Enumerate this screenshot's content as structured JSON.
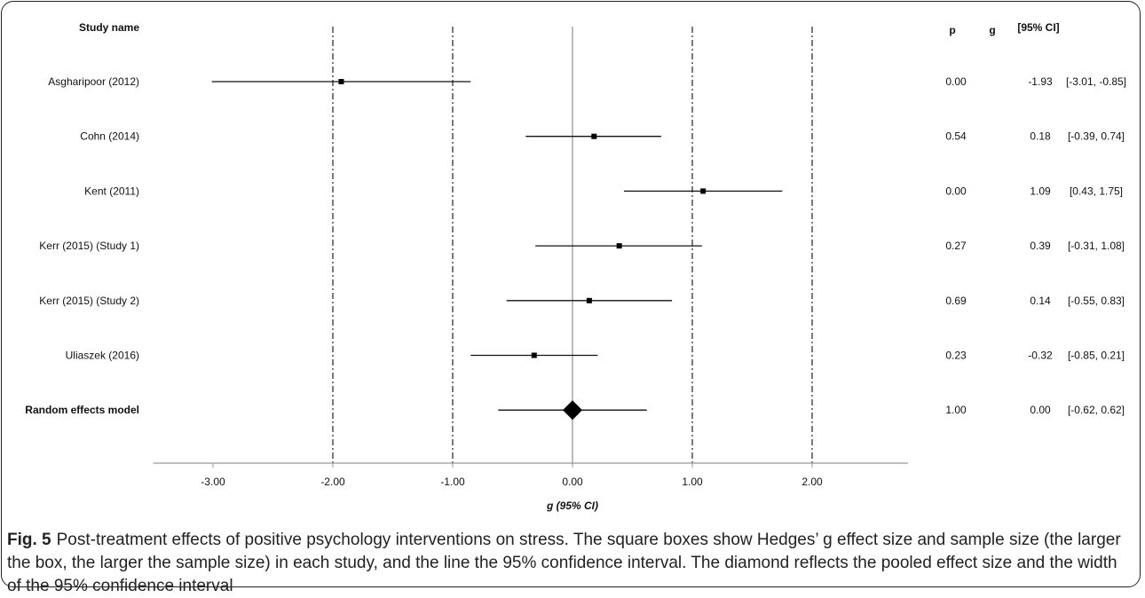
{
  "chart_data": {
    "type": "forest",
    "title": "",
    "xlabel": "g (95% CI)",
    "xlim": [
      -3.5,
      2.8
    ],
    "x_ticks": [
      -3.0,
      -2.0,
      -1.0,
      0.0,
      1.0,
      2.0
    ],
    "x_tick_labels": [
      "-3.00",
      "-2.00",
      "-1.00",
      "0.00",
      "1.00",
      "2.00"
    ],
    "reference_lines_dashdot": [
      -2.0,
      -1.0,
      1.0,
      2.0
    ],
    "reference_line_solid": 0.0,
    "headers": {
      "study": "Study name",
      "p": "p",
      "g": "g",
      "ci": "[95% CI]"
    },
    "studies": [
      {
        "name": "Asgharipoor (2012)",
        "g": -1.93,
        "lower": -3.01,
        "upper": -0.85,
        "p": "0.00",
        "g_label": "-1.93",
        "ci_label": "[-3.01, -0.85]"
      },
      {
        "name": "Cohn (2014)",
        "g": 0.18,
        "lower": -0.39,
        "upper": 0.74,
        "p": "0.54",
        "g_label": "0.18",
        "ci_label": "[-0.39, 0.74]"
      },
      {
        "name": "Kent (2011)",
        "g": 1.09,
        "lower": 0.43,
        "upper": 1.75,
        "p": "0.00",
        "g_label": "1.09",
        "ci_label": "[0.43, 1.75]"
      },
      {
        "name": "Kerr (2015) (Study 1)",
        "g": 0.39,
        "lower": -0.31,
        "upper": 1.08,
        "p": "0.27",
        "g_label": "0.39",
        "ci_label": "[-0.31, 1.08]"
      },
      {
        "name": "Kerr (2015) (Study 2)",
        "g": 0.14,
        "lower": -0.55,
        "upper": 0.83,
        "p": "0.69",
        "g_label": "0.14",
        "ci_label": "[-0.55, 0.83]"
      },
      {
        "name": "Uliaszek (2016)",
        "g": -0.32,
        "lower": -0.85,
        "upper": 0.21,
        "p": "0.23",
        "g_label": "-0.32",
        "ci_label": "[-0.85, 0.21]"
      }
    ],
    "pooled": {
      "name": "Random effects model",
      "g": 0.0,
      "lower": -0.62,
      "upper": 0.62,
      "p": "1.00",
      "g_label": "0.00",
      "ci_label": "[-0.62, 0.62]"
    }
  },
  "caption": {
    "label": "Fig. 5",
    "text": "Post-treatment effects of positive psychology interventions on stress. The square boxes show Hedges’ g effect size and sample size (the larger the box, the larger the sample size) in each study, and the line the 95% confidence interval. The diamond reflects the pooled effect size and the width of the 95% confidence interval"
  }
}
